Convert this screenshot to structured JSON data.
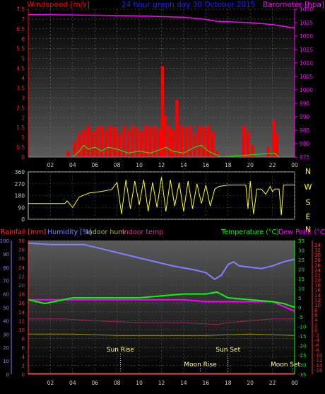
{
  "header": {
    "left_label": "Windspeed [m/s]",
    "title": "24 hour graph day  30 October 2015",
    "right_label": "Barometer [hpa]"
  },
  "direction_labels": [
    "N",
    "W",
    "S",
    "E",
    "N"
  ],
  "bottom_header": {
    "rain_label": "Rainfall [mm]",
    "humidity_label": "Humidity [%]",
    "indoor_hum_label": "Indoor hum",
    "indoor_temp_label": "Indoor temp",
    "temp_label": "Temperature (°C)",
    "dew_label": "Dew Point (°C)"
  },
  "events": {
    "sun_rise": "Sun Rise",
    "sun_set": "Sun Set",
    "moon_rise": "Moon Rise",
    "moon_set": "Moon Set"
  },
  "colors": {
    "wind": "#ff0000",
    "gust_avg": "#00ff00",
    "barometer": "#ff00ff",
    "wind_dir": "#ffff00",
    "humidity": "#8080ff",
    "temperature": "#00ff00",
    "dew_point": "#ff00ff",
    "rainfall": "#ff0000",
    "indoor_temp": "#a02060",
    "indoor_hum": "#a0a000",
    "title": "#0000ff",
    "events": "#ffff80"
  },
  "chart_data": [
    {
      "type": "bar",
      "name": "wind",
      "x_ticks": [
        "02",
        "04",
        "06",
        "08",
        "10",
        "12",
        "14",
        "16",
        "18",
        "20",
        "22",
        "00"
      ],
      "y_left_ticks": [
        "0",
        "0.5",
        "1",
        "1.5",
        "2",
        "2.5",
        "3",
        "3.5",
        "4",
        "4.5",
        "5",
        "5.5",
        "6",
        "6.5",
        "7",
        "7.5"
      ],
      "y_right_ticks": [
        "975",
        "980",
        "985",
        "990",
        "995",
        "1000",
        "1005",
        "1010",
        "1015",
        "1020",
        "1025",
        "1030"
      ],
      "ylim_left": [
        0,
        7.5
      ],
      "ylim_right": [
        975,
        1030
      ],
      "wind_gust": [
        [
          3.6,
          0.3
        ],
        [
          4.2,
          0.8
        ],
        [
          4.6,
          1.2
        ],
        [
          5.0,
          1.4
        ],
        [
          5.4,
          1.6
        ],
        [
          5.8,
          1.3
        ],
        [
          6.2,
          1.5
        ],
        [
          6.6,
          1.6
        ],
        [
          7.0,
          1.4
        ],
        [
          7.4,
          1.6
        ],
        [
          7.8,
          1.5
        ],
        [
          8.2,
          1.2
        ],
        [
          8.6,
          1.6
        ],
        [
          9.0,
          1.4
        ],
        [
          9.4,
          1.6
        ],
        [
          9.8,
          1.5
        ],
        [
          10.2,
          1.3
        ],
        [
          10.6,
          1.6
        ],
        [
          11.0,
          1.5
        ],
        [
          11.4,
          1.6
        ],
        [
          11.8,
          1.4
        ],
        [
          12.1,
          4.6
        ],
        [
          12.3,
          2.1
        ],
        [
          12.7,
          1.6
        ],
        [
          13.0,
          1.4
        ],
        [
          13.4,
          2.9
        ],
        [
          13.8,
          1.6
        ],
        [
          14.2,
          1.5
        ],
        [
          14.6,
          1.6
        ],
        [
          15.0,
          1.2
        ],
        [
          15.4,
          1.6
        ],
        [
          15.8,
          1.5
        ],
        [
          16.2,
          1.6
        ],
        [
          16.6,
          1.3
        ],
        [
          17.0,
          0.3
        ],
        [
          19.4,
          1.6
        ],
        [
          19.8,
          1.3
        ],
        [
          20.2,
          0.6
        ],
        [
          21.6,
          0.5
        ],
        [
          22.1,
          1.9
        ],
        [
          22.4,
          1.2
        ]
      ],
      "wind_avg": [
        [
          4.0,
          0
        ],
        [
          4.6,
          0.3
        ],
        [
          5.0,
          0.6
        ],
        [
          5.4,
          0.4
        ],
        [
          6.0,
          0.5
        ],
        [
          6.6,
          0.3
        ],
        [
          7.2,
          0.5
        ],
        [
          8.0,
          0.4
        ],
        [
          9.0,
          0.2
        ],
        [
          10.0,
          0.3
        ],
        [
          11.0,
          0.2
        ],
        [
          12.0,
          0.4
        ],
        [
          12.4,
          0.5
        ],
        [
          13.0,
          0.3
        ],
        [
          14.0,
          0.2
        ],
        [
          15.0,
          0.5
        ],
        [
          15.6,
          0.6
        ],
        [
          16.2,
          0.3
        ],
        [
          16.6,
          0.2
        ],
        [
          17.0,
          0.1
        ],
        [
          17.4,
          0
        ],
        [
          22.2,
          0.2
        ],
        [
          22.6,
          0
        ]
      ],
      "barometer": [
        [
          0,
          1028
        ],
        [
          6,
          1027.8
        ],
        [
          10,
          1027.5
        ],
        [
          14,
          1027
        ],
        [
          16,
          1026.2
        ],
        [
          17,
          1025.5
        ],
        [
          20,
          1025
        ],
        [
          22,
          1024.3
        ],
        [
          24,
          1023
        ]
      ]
    },
    {
      "type": "line",
      "name": "wind_direction",
      "x_ticks": [
        "02",
        "04",
        "06",
        "08",
        "10",
        "12",
        "14",
        "16",
        "18",
        "20",
        "22",
        "00"
      ],
      "y_ticks": [
        "0",
        "90",
        "180",
        "270",
        "360"
      ],
      "ylim": [
        0,
        360
      ],
      "points": [
        [
          0,
          120
        ],
        [
          3.3,
          120
        ],
        [
          3.5,
          140
        ],
        [
          4.0,
          90
        ],
        [
          4.6,
          170
        ],
        [
          5.5,
          200
        ],
        [
          6.5,
          210
        ],
        [
          7.5,
          225
        ],
        [
          8.0,
          280
        ],
        [
          8.4,
          40
        ],
        [
          8.8,
          300
        ],
        [
          9.2,
          80
        ],
        [
          9.6,
          290
        ],
        [
          10.0,
          110
        ],
        [
          10.4,
          300
        ],
        [
          10.8,
          60
        ],
        [
          11.2,
          280
        ],
        [
          11.6,
          90
        ],
        [
          12.0,
          320
        ],
        [
          12.4,
          60
        ],
        [
          12.8,
          300
        ],
        [
          13.2,
          100
        ],
        [
          13.6,
          280
        ],
        [
          14.0,
          60
        ],
        [
          14.4,
          290
        ],
        [
          14.8,
          80
        ],
        [
          15.2,
          270
        ],
        [
          15.6,
          120
        ],
        [
          16.0,
          260
        ],
        [
          16.4,
          100
        ],
        [
          16.8,
          230
        ],
        [
          17.2,
          250
        ],
        [
          18.0,
          260
        ],
        [
          19.6,
          260
        ],
        [
          19.8,
          80
        ],
        [
          20.0,
          290
        ],
        [
          20.3,
          40
        ],
        [
          20.6,
          230
        ],
        [
          21.0,
          230
        ],
        [
          21.4,
          190
        ],
        [
          21.8,
          250
        ],
        [
          22.0,
          210
        ],
        [
          22.2,
          230
        ],
        [
          22.6,
          230
        ],
        [
          22.8,
          30
        ],
        [
          23.0,
          260
        ],
        [
          24,
          260
        ]
      ]
    },
    {
      "type": "line",
      "name": "temp_humidity",
      "x_ticks": [
        "02",
        "04",
        "06",
        "08",
        "10",
        "12",
        "14",
        "16",
        "18",
        "20",
        "22",
        "00"
      ],
      "y_left_mm_ticks": [
        "0",
        "2",
        "4",
        "6",
        "8",
        "10",
        "12",
        "14",
        "16",
        "18",
        "20",
        "22",
        "24",
        "26",
        "28",
        "30"
      ],
      "y_left_pct_ticks": [
        "0",
        "10",
        "20",
        "30",
        "40",
        "50",
        "60",
        "70",
        "80",
        "90",
        "100"
      ],
      "y_temp_ticks": [
        "-35",
        "-30",
        "-25",
        "-20",
        "-15",
        "-10",
        "-5",
        "0",
        "5",
        "10",
        "15",
        "20",
        "25",
        "30",
        "35"
      ],
      "y_dew_ticks": [
        "-16",
        "-14",
        "-12",
        "-10",
        "-8",
        "-6",
        "-4",
        "-2",
        "0",
        "2",
        "4",
        "6",
        "8",
        "10",
        "12",
        "14",
        "16",
        "18",
        "20",
        "22",
        "24",
        "26",
        "28",
        "30",
        "32",
        "34"
      ],
      "ylim_humidity": [
        0,
        100
      ],
      "ylim_temp": [
        -35,
        35
      ],
      "ylim_rain": [
        0,
        30
      ],
      "humidity": [
        [
          0,
          98
        ],
        [
          2,
          97
        ],
        [
          5,
          97
        ],
        [
          6.5,
          94
        ],
        [
          8.0,
          91
        ],
        [
          10,
          87
        ],
        [
          12,
          83
        ],
        [
          13,
          81
        ],
        [
          15,
          78
        ],
        [
          16,
          76
        ],
        [
          16.8,
          71
        ],
        [
          17.4,
          74
        ],
        [
          18,
          82
        ],
        [
          18.5,
          84
        ],
        [
          19,
          81
        ],
        [
          20,
          80
        ],
        [
          21,
          79
        ],
        [
          22,
          81
        ],
        [
          23,
          84
        ],
        [
          24,
          86
        ]
      ],
      "temperature": [
        [
          0,
          4
        ],
        [
          1.5,
          2
        ],
        [
          4,
          5
        ],
        [
          8,
          5
        ],
        [
          10,
          5
        ],
        [
          12,
          6
        ],
        [
          14,
          7
        ],
        [
          16,
          7
        ],
        [
          17,
          8
        ],
        [
          18,
          5
        ],
        [
          20,
          4
        ],
        [
          22,
          3
        ],
        [
          23,
          2
        ],
        [
          24,
          0
        ]
      ],
      "dew_point": [
        [
          0,
          4
        ],
        [
          4,
          4
        ],
        [
          8,
          4
        ],
        [
          12,
          4
        ],
        [
          14,
          4
        ],
        [
          16,
          3
        ],
        [
          18,
          3
        ],
        [
          20,
          3
        ],
        [
          22,
          3
        ],
        [
          24,
          -2
        ]
      ],
      "indoor_temp": [
        [
          0,
          -6
        ],
        [
          3,
          -6
        ],
        [
          6,
          -7
        ],
        [
          10,
          -8
        ],
        [
          14,
          -8
        ],
        [
          17,
          -9
        ],
        [
          18,
          -8
        ],
        [
          22,
          -6
        ],
        [
          24,
          -6
        ]
      ],
      "indoor_hum": [
        [
          0,
          30
        ],
        [
          4,
          30
        ],
        [
          8,
          29
        ],
        [
          12,
          29
        ],
        [
          16,
          29
        ],
        [
          20,
          30
        ],
        [
          24,
          29
        ]
      ],
      "rainfall": [
        [
          0,
          0
        ],
        [
          24,
          0
        ]
      ],
      "sun_rise_hour": 8.3,
      "sun_set_hour": 18.0,
      "moon_rise_hour": 15.5,
      "moon_set_hour": 23.8
    }
  ]
}
